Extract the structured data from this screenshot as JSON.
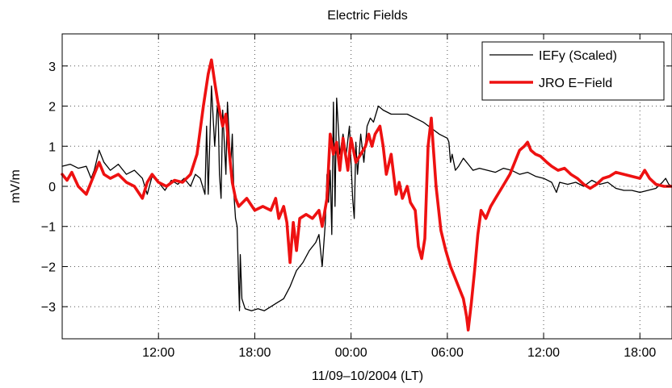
{
  "chart_data": {
    "type": "line",
    "title": "Electric Fields",
    "xlabel": "11/09–10/2004 (LT)",
    "ylabel": "mV/m",
    "xlim": [
      6.0,
      44.0
    ],
    "ylim": [
      -3.8,
      3.8
    ],
    "x_ticks": [
      {
        "value": 12,
        "label": "12:00"
      },
      {
        "value": 18,
        "label": "18:00"
      },
      {
        "value": 24,
        "label": "00:00"
      },
      {
        "value": 30,
        "label": "06:00"
      },
      {
        "value": 36,
        "label": "12:00"
      },
      {
        "value": 42,
        "label": "18:00"
      }
    ],
    "y_ticks": [
      {
        "value": -3,
        "label": "−3"
      },
      {
        "value": -2,
        "label": "−2"
      },
      {
        "value": -1,
        "label": "−1"
      },
      {
        "value": 0,
        "label": "0"
      },
      {
        "value": 1,
        "label": "1"
      },
      {
        "value": 2,
        "label": "2"
      },
      {
        "value": 3,
        "label": "3"
      }
    ],
    "grid": "dotted",
    "legend": "top-right",
    "series": [
      {
        "name": "IEFy (Scaled)",
        "color": "#000000",
        "width": 1.3,
        "points": [
          [
            6.0,
            0.5
          ],
          [
            6.5,
            0.55
          ],
          [
            7.0,
            0.45
          ],
          [
            7.5,
            0.5
          ],
          [
            7.8,
            0.2
          ],
          [
            8.0,
            0.4
          ],
          [
            8.3,
            0.9
          ],
          [
            8.6,
            0.6
          ],
          [
            9.0,
            0.4
          ],
          [
            9.5,
            0.55
          ],
          [
            10.0,
            0.3
          ],
          [
            10.5,
            0.4
          ],
          [
            11.0,
            0.2
          ],
          [
            11.3,
            -0.2
          ],
          [
            11.6,
            0.25
          ],
          [
            12.0,
            0.1
          ],
          [
            12.4,
            -0.1
          ],
          [
            12.8,
            0.15
          ],
          [
            13.2,
            0.05
          ],
          [
            13.6,
            0.2
          ],
          [
            14.0,
            0.0
          ],
          [
            14.3,
            0.3
          ],
          [
            14.6,
            0.2
          ],
          [
            14.9,
            -0.2
          ],
          [
            15.0,
            1.5
          ],
          [
            15.1,
            -0.2
          ],
          [
            15.3,
            2.5
          ],
          [
            15.5,
            1.0
          ],
          [
            15.7,
            2.2
          ],
          [
            15.8,
            0.3
          ],
          [
            15.9,
            -0.3
          ],
          [
            16.0,
            1.9
          ],
          [
            16.2,
            0.3
          ],
          [
            16.3,
            2.1
          ],
          [
            16.5,
            0.5
          ],
          [
            16.6,
            1.3
          ],
          [
            16.7,
            -0.2
          ],
          [
            16.8,
            -0.8
          ],
          [
            16.9,
            -1.0
          ],
          [
            17.0,
            -2.5
          ],
          [
            17.05,
            -3.1
          ],
          [
            17.1,
            -1.7
          ],
          [
            17.2,
            -2.8
          ],
          [
            17.4,
            -3.05
          ],
          [
            17.8,
            -3.1
          ],
          [
            18.2,
            -3.05
          ],
          [
            18.6,
            -3.1
          ],
          [
            19.0,
            -3.0
          ],
          [
            19.4,
            -2.9
          ],
          [
            19.8,
            -2.8
          ],
          [
            20.2,
            -2.5
          ],
          [
            20.6,
            -2.1
          ],
          [
            21.0,
            -1.9
          ],
          [
            21.4,
            -1.6
          ],
          [
            21.8,
            -1.4
          ],
          [
            22.0,
            -1.2
          ],
          [
            22.2,
            -2.0
          ],
          [
            22.4,
            -0.9
          ],
          [
            22.5,
            0.3
          ],
          [
            22.6,
            -0.4
          ],
          [
            22.7,
            0.4
          ],
          [
            22.8,
            -1.2
          ],
          [
            22.9,
            2.1
          ],
          [
            23.0,
            -0.5
          ],
          [
            23.1,
            2.2
          ],
          [
            23.3,
            0.8
          ],
          [
            23.5,
            1.3
          ],
          [
            23.7,
            0.8
          ],
          [
            23.9,
            1.5
          ],
          [
            24.1,
            -0.3
          ],
          [
            24.2,
            -0.8
          ],
          [
            24.3,
            1.1
          ],
          [
            24.4,
            0.3
          ],
          [
            24.6,
            1.3
          ],
          [
            24.8,
            0.6
          ],
          [
            25.0,
            1.5
          ],
          [
            25.2,
            1.7
          ],
          [
            25.4,
            1.6
          ],
          [
            25.7,
            2.0
          ],
          [
            26.0,
            1.9
          ],
          [
            26.5,
            1.8
          ],
          [
            27.0,
            1.8
          ],
          [
            27.5,
            1.8
          ],
          [
            28.0,
            1.7
          ],
          [
            28.5,
            1.6
          ],
          [
            29.0,
            1.45
          ],
          [
            29.5,
            1.3
          ],
          [
            30.0,
            1.2
          ],
          [
            30.1,
            1.1
          ],
          [
            30.2,
            0.6
          ],
          [
            30.3,
            0.8
          ],
          [
            30.5,
            0.4
          ],
          [
            30.7,
            0.5
          ],
          [
            31.0,
            0.7
          ],
          [
            31.3,
            0.55
          ],
          [
            31.6,
            0.4
          ],
          [
            32.0,
            0.45
          ],
          [
            32.5,
            0.4
          ],
          [
            33.0,
            0.35
          ],
          [
            33.5,
            0.45
          ],
          [
            34.0,
            0.4
          ],
          [
            34.5,
            0.3
          ],
          [
            35.0,
            0.35
          ],
          [
            35.5,
            0.25
          ],
          [
            36.0,
            0.2
          ],
          [
            36.5,
            0.1
          ],
          [
            36.8,
            -0.15
          ],
          [
            37.0,
            0.1
          ],
          [
            37.5,
            0.05
          ],
          [
            38.0,
            0.1
          ],
          [
            38.5,
            0.0
          ],
          [
            39.0,
            0.15
          ],
          [
            39.5,
            0.05
          ],
          [
            40.0,
            0.1
          ],
          [
            40.5,
            -0.05
          ],
          [
            41.0,
            -0.1
          ],
          [
            41.5,
            -0.1
          ],
          [
            42.0,
            -0.15
          ],
          [
            42.5,
            -0.1
          ],
          [
            43.0,
            -0.05
          ],
          [
            43.4,
            0.1
          ],
          [
            43.6,
            0.2
          ],
          [
            43.8,
            0.05
          ],
          [
            44.0,
            0.0
          ]
        ]
      },
      {
        "name": "JRO E−Field",
        "color": "#ee1111",
        "width": 3.6,
        "points": [
          [
            6.0,
            0.3
          ],
          [
            6.3,
            0.15
          ],
          [
            6.6,
            0.35
          ],
          [
            7.0,
            0.0
          ],
          [
            7.5,
            -0.2
          ],
          [
            8.0,
            0.3
          ],
          [
            8.3,
            0.6
          ],
          [
            8.6,
            0.3
          ],
          [
            9.0,
            0.2
          ],
          [
            9.5,
            0.3
          ],
          [
            10.0,
            0.1
          ],
          [
            10.5,
            0.0
          ],
          [
            11.0,
            -0.3
          ],
          [
            11.3,
            0.1
          ],
          [
            11.6,
            0.3
          ],
          [
            12.0,
            0.1
          ],
          [
            12.5,
            0.0
          ],
          [
            13.0,
            0.15
          ],
          [
            13.5,
            0.1
          ],
          [
            14.0,
            0.3
          ],
          [
            14.4,
            0.8
          ],
          [
            14.8,
            2.0
          ],
          [
            15.1,
            2.8
          ],
          [
            15.3,
            3.15
          ],
          [
            15.5,
            2.6
          ],
          [
            15.7,
            2.1
          ],
          [
            16.0,
            1.5
          ],
          [
            16.2,
            1.8
          ],
          [
            16.4,
            0.9
          ],
          [
            16.6,
            0.1
          ],
          [
            16.8,
            -0.3
          ],
          [
            17.0,
            -0.5
          ],
          [
            17.5,
            -0.3
          ],
          [
            18.0,
            -0.6
          ],
          [
            18.5,
            -0.5
          ],
          [
            19.0,
            -0.6
          ],
          [
            19.3,
            -0.3
          ],
          [
            19.5,
            -0.8
          ],
          [
            19.8,
            -0.5
          ],
          [
            20.0,
            -0.9
          ],
          [
            20.2,
            -1.9
          ],
          [
            20.4,
            -0.9
          ],
          [
            20.6,
            -1.6
          ],
          [
            20.8,
            -0.8
          ],
          [
            21.2,
            -0.7
          ],
          [
            21.6,
            -0.8
          ],
          [
            22.0,
            -0.6
          ],
          [
            22.2,
            -1.0
          ],
          [
            22.5,
            -0.3
          ],
          [
            22.7,
            1.3
          ],
          [
            22.9,
            0.8
          ],
          [
            23.1,
            1.1
          ],
          [
            23.3,
            0.4
          ],
          [
            23.5,
            1.2
          ],
          [
            23.8,
            0.4
          ],
          [
            24.0,
            1.2
          ],
          [
            24.3,
            0.6
          ],
          [
            24.6,
            0.8
          ],
          [
            24.9,
            1.0
          ],
          [
            25.1,
            1.3
          ],
          [
            25.3,
            1.0
          ],
          [
            25.5,
            1.3
          ],
          [
            25.8,
            1.5
          ],
          [
            26.0,
            1.0
          ],
          [
            26.2,
            0.3
          ],
          [
            26.5,
            0.8
          ],
          [
            26.8,
            -0.2
          ],
          [
            27.0,
            0.1
          ],
          [
            27.2,
            -0.3
          ],
          [
            27.5,
            0.0
          ],
          [
            27.7,
            -0.4
          ],
          [
            28.0,
            -0.6
          ],
          [
            28.2,
            -1.5
          ],
          [
            28.4,
            -1.8
          ],
          [
            28.6,
            -1.3
          ],
          [
            28.8,
            1.0
          ],
          [
            29.0,
            1.7
          ],
          [
            29.1,
            1.1
          ],
          [
            29.3,
            0.0
          ],
          [
            29.6,
            -1.1
          ],
          [
            29.9,
            -1.6
          ],
          [
            30.2,
            -2.0
          ],
          [
            30.5,
            -2.3
          ],
          [
            30.8,
            -2.6
          ],
          [
            31.0,
            -2.8
          ],
          [
            31.2,
            -3.25
          ],
          [
            31.3,
            -3.58
          ],
          [
            31.5,
            -2.9
          ],
          [
            31.7,
            -2.1
          ],
          [
            31.9,
            -1.2
          ],
          [
            32.1,
            -0.6
          ],
          [
            32.4,
            -0.8
          ],
          [
            32.7,
            -0.5
          ],
          [
            33.0,
            -0.3
          ],
          [
            33.3,
            -0.1
          ],
          [
            33.6,
            0.1
          ],
          [
            33.9,
            0.3
          ],
          [
            34.2,
            0.6
          ],
          [
            34.5,
            0.9
          ],
          [
            34.8,
            1.0
          ],
          [
            35.0,
            1.1
          ],
          [
            35.2,
            0.9
          ],
          [
            35.5,
            0.8
          ],
          [
            35.8,
            0.75
          ],
          [
            36.2,
            0.6
          ],
          [
            36.5,
            0.5
          ],
          [
            36.9,
            0.4
          ],
          [
            37.3,
            0.45
          ],
          [
            37.7,
            0.3
          ],
          [
            38.1,
            0.2
          ],
          [
            38.5,
            0.05
          ],
          [
            38.9,
            -0.05
          ],
          [
            39.3,
            0.05
          ],
          [
            39.7,
            0.2
          ],
          [
            40.1,
            0.25
          ],
          [
            40.5,
            0.35
          ],
          [
            41.0,
            0.3
          ],
          [
            41.5,
            0.25
          ],
          [
            42.0,
            0.2
          ],
          [
            42.3,
            0.4
          ],
          [
            42.6,
            0.2
          ],
          [
            43.0,
            0.05
          ],
          [
            43.5,
            0.0
          ],
          [
            44.0,
            0.0
          ]
        ]
      }
    ]
  }
}
